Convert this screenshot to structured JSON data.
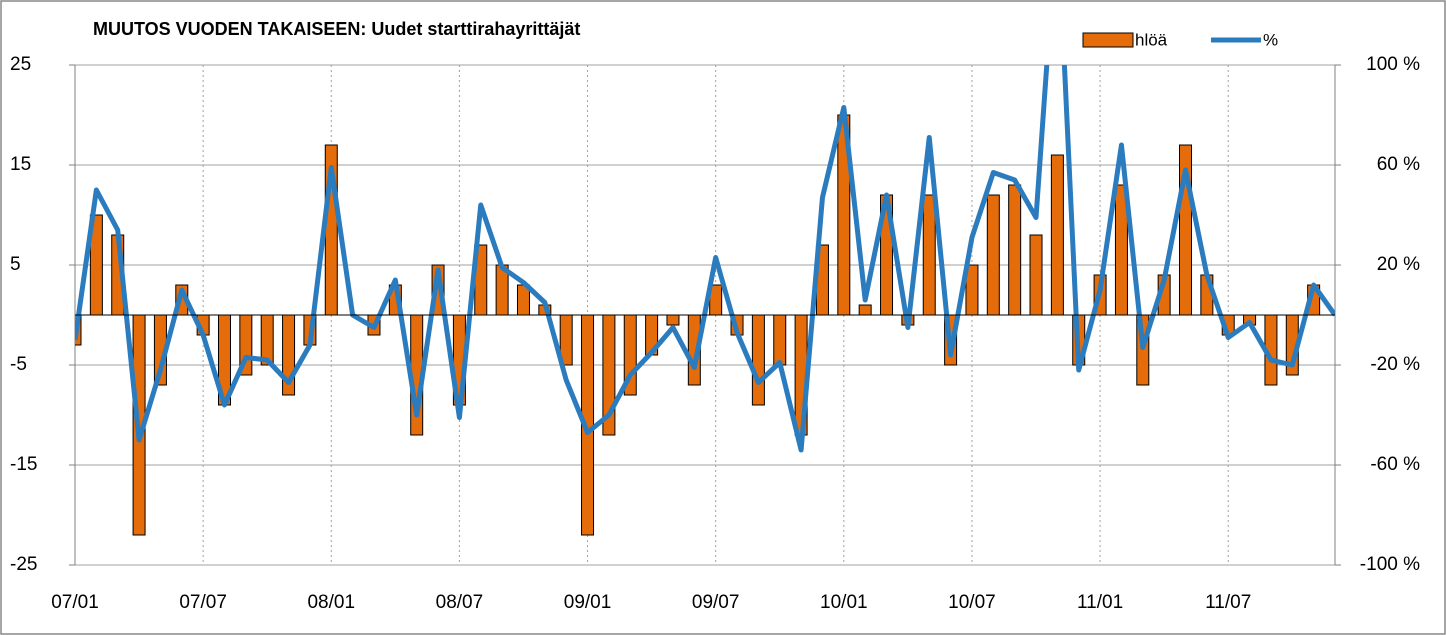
{
  "chart_data": {
    "type": "bar-line",
    "title": "MUUTOS VUODEN TAKAISEEN: Uudet starttirahayrittäjät",
    "categories": [
      "07/01",
      null,
      null,
      null,
      null,
      null,
      "07/07",
      null,
      null,
      null,
      null,
      null,
      "08/01",
      null,
      null,
      null,
      null,
      null,
      "08/07",
      null,
      null,
      null,
      null,
      null,
      "09/01",
      null,
      null,
      null,
      null,
      null,
      "09/07",
      null,
      null,
      null,
      null,
      null,
      "10/01",
      null,
      null,
      null,
      null,
      null,
      "10/07",
      null,
      null,
      null,
      null,
      null,
      "11/01",
      null,
      null,
      null,
      null,
      null,
      "11/07",
      null,
      null,
      null,
      null,
      null
    ],
    "series": [
      {
        "name": "hlöä",
        "type": "bar",
        "color": "#e46c0a",
        "values": [
          -3,
          10,
          8,
          -22,
          -7,
          3,
          -2,
          -9,
          -6,
          -5,
          -8,
          -3,
          17,
          0,
          -2,
          3,
          -12,
          5,
          -9,
          7,
          5,
          3,
          1,
          -5,
          -22,
          -12,
          -8,
          -4,
          -1,
          -7,
          3,
          -2,
          -9,
          -5,
          -12,
          7,
          20,
          1,
          12,
          -1,
          12,
          -5,
          5,
          12,
          13,
          8,
          16,
          -5,
          4,
          13,
          -7,
          4,
          17,
          4,
          -2,
          -1,
          -7,
          -6,
          3,
          0
        ]
      },
      {
        "name": "%",
        "type": "line",
        "axis": "y2",
        "color": "#2b7bbf",
        "values": [
          -10,
          50,
          34,
          -50,
          -22,
          10,
          -8,
          -36,
          -17,
          -18,
          -27,
          -12,
          59,
          0,
          -5,
          14,
          -40,
          18,
          -41,
          44,
          19,
          13,
          5,
          -26,
          -47,
          -40,
          -24,
          -15,
          -5,
          -21,
          23,
          -7,
          -27,
          -19,
          -54,
          47,
          83,
          6,
          48,
          -5,
          71,
          -16,
          31,
          57,
          54,
          39,
          160,
          -22,
          10,
          68,
          -13,
          14,
          58,
          16,
          -9,
          -3,
          -18,
          -20,
          12,
          0
        ]
      }
    ],
    "ylim": [
      -25,
      25
    ],
    "yticks": [
      -25,
      -15,
      -5,
      5,
      15,
      25
    ],
    "y2lim": [
      -100,
      100
    ],
    "y2ticks": [
      {
        "value": -100,
        "label": "-100 %"
      },
      {
        "value": -60,
        "label": "-60 %"
      },
      {
        "value": -20,
        "label": "-20 %"
      },
      {
        "value": 20,
        "label": "20 %"
      },
      {
        "value": 60,
        "label": "60 %"
      },
      {
        "value": 100,
        "label": "100 %"
      }
    ],
    "grid": true
  }
}
